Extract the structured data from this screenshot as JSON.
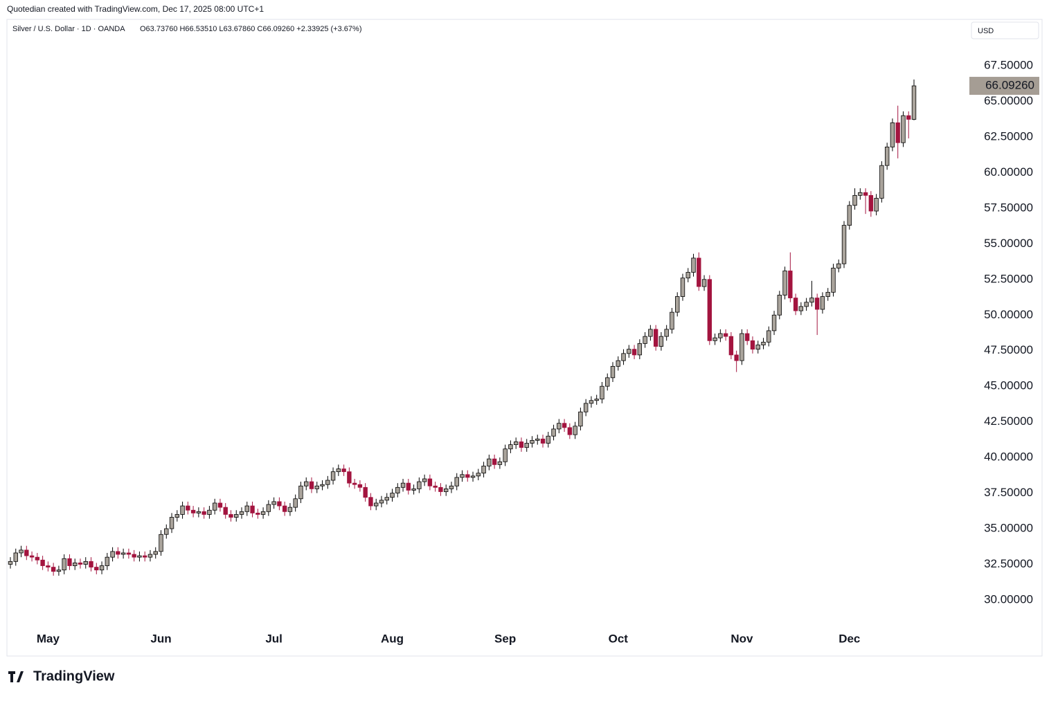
{
  "attribution": "Quotedian created with TradingView.com, Dec 17, 2025 08:00 UTC+1",
  "logo": "TradingView",
  "currency": "USD",
  "chart_data": {
    "type": "candlestick",
    "title": "Silver / U.S. Dollar · 1D · OANDA",
    "subtitle": "O63.73760 H66.53510 L63.67860 C66.09260 +2.33925 (+3.67%)",
    "up_color": "#aaa49c",
    "down_color": "#a3143f",
    "outline_color": "#000000",
    "last_label": "66.09260",
    "last_label_color": "#a59d94",
    "categories": [
      null,
      null,
      null,
      null,
      null,
      null,
      null,
      "May",
      null,
      null,
      null,
      null,
      null,
      null,
      null,
      null,
      null,
      null,
      null,
      null,
      null,
      null,
      null,
      null,
      null,
      null,
      null,
      null,
      "Jun",
      null,
      null,
      null,
      null,
      null,
      null,
      null,
      null,
      null,
      null,
      null,
      null,
      null,
      null,
      null,
      null,
      null,
      null,
      null,
      null,
      "Jul",
      null,
      null,
      null,
      null,
      null,
      null,
      null,
      null,
      null,
      null,
      null,
      null,
      null,
      null,
      null,
      null,
      null,
      null,
      null,
      null,
      null,
      "Aug",
      null,
      null,
      null,
      null,
      null,
      null,
      null,
      null,
      null,
      null,
      null,
      null,
      null,
      null,
      null,
      null,
      null,
      null,
      null,
      null,
      "Sep",
      null,
      null,
      null,
      null,
      null,
      null,
      null,
      null,
      null,
      null,
      null,
      null,
      null,
      null,
      null,
      null,
      null,
      null,
      null,
      null,
      "Oct",
      null,
      null,
      null,
      null,
      null,
      null,
      null,
      null,
      null,
      null,
      null,
      null,
      null,
      null,
      null,
      null,
      null,
      null,
      null,
      null,
      null,
      null,
      "Nov",
      null,
      null,
      null,
      null,
      null,
      null,
      null,
      null,
      null,
      null,
      null,
      null,
      null,
      null,
      null,
      null,
      null,
      null,
      null,
      "Dec",
      null,
      null,
      null,
      null,
      null,
      null,
      null,
      null,
      null,
      null,
      null,
      null
    ],
    "open": [
      32.5,
      32.7,
      33.3,
      33.5,
      33.1,
      33.0,
      32.8,
      32.4,
      32.3,
      32.0,
      32.1,
      32.9,
      32.4,
      32.6,
      32.5,
      32.7,
      32.3,
      32.1,
      32.4,
      33.0,
      33.4,
      33.2,
      33.3,
      33.2,
      33.0,
      33.1,
      33.0,
      33.2,
      33.4,
      34.6,
      35.0,
      35.8,
      36.0,
      36.6,
      36.3,
      36.1,
      36.2,
      36.0,
      36.3,
      36.8,
      36.5,
      36.0,
      35.8,
      36.0,
      36.2,
      36.6,
      36.1,
      36.0,
      36.2,
      36.7,
      36.9,
      36.6,
      36.2,
      36.5,
      37.1,
      38.0,
      38.3,
      37.8,
      38.0,
      38.1,
      38.4,
      39.0,
      39.2,
      39.0,
      38.2,
      38.1,
      37.9,
      37.2,
      36.6,
      36.8,
      37.0,
      37.2,
      37.5,
      37.9,
      38.2,
      37.7,
      37.8,
      38.3,
      38.5,
      38.0,
      37.9,
      37.6,
      37.8,
      38.0,
      38.6,
      38.8,
      38.6,
      38.7,
      38.9,
      39.4,
      39.9,
      39.5,
      39.7,
      40.6,
      40.9,
      41.1,
      40.7,
      41.0,
      41.2,
      41.3,
      41.0,
      41.5,
      42.0,
      42.4,
      42.1,
      41.6,
      42.2,
      43.2,
      43.8,
      44.0,
      44.1,
      45.0,
      45.6,
      46.4,
      46.8,
      47.3,
      47.6,
      47.2,
      48.0,
      48.5,
      49.0,
      47.8,
      48.5,
      49.0,
      50.2,
      51.3,
      52.6,
      53.0,
      54.0,
      52.0,
      52.5,
      48.2,
      48.4,
      48.7,
      48.5,
      47.2,
      46.8,
      48.7,
      48.2,
      47.6,
      47.9,
      48.1,
      48.9,
      50.0,
      51.4,
      53.1,
      51.2,
      50.3,
      50.6,
      50.9,
      51.2,
      50.4,
      51.3,
      51.6,
      53.3,
      53.6,
      56.3,
      57.7,
      58.4,
      58.6,
      58.4,
      57.3,
      58.2,
      60.5,
      61.8,
      63.5,
      62.1,
      64.0,
      63.7376
    ],
    "high": [
      33.0,
      33.6,
      33.8,
      33.8,
      33.4,
      33.3,
      33.1,
      32.7,
      32.6,
      32.4,
      33.2,
      33.2,
      32.9,
      32.9,
      33.0,
      33.0,
      32.6,
      32.7,
      33.3,
      33.7,
      33.7,
      33.6,
      33.6,
      33.5,
      33.4,
      33.4,
      33.5,
      33.7,
      34.9,
      35.3,
      36.1,
      36.3,
      36.9,
      36.9,
      36.6,
      36.5,
      36.5,
      36.6,
      37.1,
      37.1,
      36.8,
      36.3,
      36.3,
      36.5,
      36.9,
      36.9,
      36.4,
      36.5,
      37.0,
      37.2,
      37.2,
      36.9,
      36.8,
      37.4,
      38.3,
      38.6,
      38.6,
      38.3,
      38.4,
      38.7,
      39.3,
      39.5,
      39.5,
      39.3,
      38.5,
      38.4,
      38.2,
      37.5,
      37.1,
      37.3,
      37.5,
      37.8,
      38.2,
      38.5,
      38.5,
      38.1,
      38.6,
      38.8,
      38.8,
      38.3,
      38.2,
      38.1,
      38.3,
      38.9,
      39.1,
      39.1,
      39.0,
      39.2,
      39.7,
      40.2,
      40.2,
      40.0,
      40.9,
      41.2,
      41.4,
      41.4,
      41.3,
      41.5,
      41.6,
      41.6,
      41.8,
      42.3,
      42.7,
      42.7,
      42.4,
      42.5,
      43.5,
      44.1,
      44.3,
      44.4,
      45.3,
      45.9,
      46.7,
      47.1,
      47.6,
      47.9,
      47.9,
      48.3,
      48.8,
      49.3,
      49.3,
      48.8,
      49.3,
      50.5,
      51.6,
      52.9,
      53.3,
      54.3,
      54.4,
      52.8,
      52.8,
      48.7,
      49.0,
      49.0,
      48.8,
      47.5,
      49.0,
      49.0,
      48.5,
      48.2,
      48.4,
      49.2,
      50.3,
      51.7,
      53.4,
      54.4,
      51.5,
      50.9,
      51.2,
      52.4,
      51.5,
      51.6,
      51.9,
      53.6,
      53.9,
      56.6,
      58.0,
      58.9,
      58.9,
      58.9,
      58.7,
      58.5,
      60.8,
      62.1,
      63.8,
      64.7,
      64.3,
      64.3,
      66.5351
    ],
    "low": [
      32.2,
      32.4,
      33.0,
      32.8,
      32.7,
      32.5,
      32.1,
      32.0,
      31.7,
      31.7,
      31.8,
      32.1,
      32.1,
      32.2,
      32.2,
      32.0,
      31.8,
      31.8,
      32.1,
      32.7,
      32.9,
      32.9,
      32.9,
      32.7,
      32.7,
      32.7,
      32.7,
      32.9,
      33.1,
      34.3,
      34.7,
      35.5,
      35.7,
      36.0,
      35.8,
      35.8,
      35.7,
      35.7,
      36.0,
      36.2,
      35.7,
      35.5,
      35.5,
      35.7,
      35.9,
      35.8,
      35.7,
      35.7,
      35.9,
      36.4,
      36.3,
      35.9,
      35.9,
      36.2,
      36.8,
      37.7,
      37.5,
      37.5,
      37.7,
      37.8,
      38.1,
      38.7,
      38.7,
      37.9,
      37.8,
      37.6,
      36.9,
      36.3,
      36.3,
      36.5,
      36.7,
      36.9,
      37.2,
      37.6,
      37.4,
      37.4,
      37.5,
      38.0,
      37.7,
      37.6,
      37.3,
      37.3,
      37.5,
      37.7,
      38.3,
      38.3,
      38.3,
      38.4,
      38.6,
      39.1,
      39.2,
      39.2,
      39.4,
      40.3,
      40.6,
      40.4,
      40.4,
      40.7,
      40.9,
      40.7,
      40.7,
      41.2,
      41.7,
      41.8,
      41.3,
      41.3,
      41.9,
      42.9,
      43.5,
      43.7,
      43.8,
      44.7,
      45.3,
      46.1,
      46.5,
      47.0,
      46.9,
      46.9,
      47.7,
      48.2,
      47.5,
      47.5,
      48.2,
      48.7,
      49.9,
      51.0,
      52.3,
      52.7,
      51.7,
      51.7,
      47.9,
      47.9,
      48.1,
      48.2,
      46.9,
      46.0,
      46.5,
      47.9,
      47.3,
      47.3,
      47.6,
      47.8,
      48.6,
      49.7,
      51.1,
      50.9,
      50.0,
      50.0,
      50.3,
      50.6,
      48.6,
      50.1,
      51.0,
      51.3,
      53.0,
      53.3,
      56.0,
      57.4,
      58.1,
      57.1,
      56.9,
      57.0,
      57.9,
      60.2,
      61.5,
      61.0,
      61.8,
      62.4,
      63.6786
    ],
    "close": [
      32.7,
      33.3,
      33.5,
      33.1,
      33.0,
      32.8,
      32.4,
      32.3,
      32.0,
      32.1,
      32.9,
      32.4,
      32.6,
      32.5,
      32.7,
      32.3,
      32.1,
      32.4,
      33.0,
      33.4,
      33.2,
      33.3,
      33.2,
      33.0,
      33.1,
      33.0,
      33.2,
      33.4,
      34.6,
      35.0,
      35.8,
      36.0,
      36.6,
      36.3,
      36.1,
      36.2,
      36.0,
      36.3,
      36.8,
      36.5,
      36.0,
      35.8,
      36.0,
      36.2,
      36.6,
      36.1,
      36.0,
      36.2,
      36.7,
      36.9,
      36.6,
      36.2,
      36.5,
      37.1,
      38.0,
      38.3,
      37.8,
      38.0,
      38.1,
      38.4,
      39.0,
      39.2,
      39.0,
      38.2,
      38.1,
      37.9,
      37.2,
      36.6,
      36.8,
      37.0,
      37.2,
      37.5,
      37.9,
      38.2,
      37.7,
      37.8,
      38.3,
      38.5,
      38.0,
      37.9,
      37.6,
      37.8,
      38.0,
      38.6,
      38.8,
      38.6,
      38.7,
      38.9,
      39.4,
      39.9,
      39.5,
      39.7,
      40.6,
      40.9,
      41.1,
      40.7,
      41.0,
      41.2,
      41.3,
      41.0,
      41.5,
      42.0,
      42.4,
      42.1,
      41.6,
      42.2,
      43.2,
      43.8,
      44.0,
      44.1,
      45.0,
      45.6,
      46.4,
      46.8,
      47.3,
      47.6,
      47.2,
      48.0,
      48.5,
      49.0,
      47.8,
      48.5,
      49.0,
      50.2,
      51.3,
      52.6,
      53.0,
      54.0,
      52.0,
      52.5,
      48.2,
      48.4,
      48.7,
      48.5,
      47.2,
      46.8,
      48.7,
      48.2,
      47.6,
      47.9,
      48.1,
      48.9,
      50.0,
      51.4,
      53.1,
      51.2,
      50.3,
      50.6,
      50.9,
      51.2,
      50.4,
      51.3,
      51.6,
      53.3,
      53.6,
      56.3,
      57.7,
      58.4,
      58.6,
      58.4,
      57.3,
      58.2,
      60.5,
      61.8,
      63.5,
      62.1,
      64.0,
      63.74,
      66.0926
    ],
    "ylim": [
      28.15,
      70.71
    ],
    "yticks": [
      {
        "value": 30,
        "label": "30.00000"
      },
      {
        "value": 32.5,
        "label": "32.50000"
      },
      {
        "value": 35,
        "label": "35.00000"
      },
      {
        "value": 37.5,
        "label": "37.50000"
      },
      {
        "value": 40,
        "label": "40.00000"
      },
      {
        "value": 42.5,
        "label": "42.50000"
      },
      {
        "value": 45,
        "label": "45.00000"
      },
      {
        "value": 47.5,
        "label": "47.50000"
      },
      {
        "value": 50,
        "label": "50.00000"
      },
      {
        "value": 52.5,
        "label": "52.50000"
      },
      {
        "value": 55,
        "label": "55.00000"
      },
      {
        "value": 57.5,
        "label": "57.50000"
      },
      {
        "value": 60,
        "label": "60.00000"
      },
      {
        "value": 62.5,
        "label": "62.50000"
      },
      {
        "value": 65,
        "label": "65.00000"
      },
      {
        "value": 67.5,
        "label": "67.50000"
      }
    ]
  }
}
